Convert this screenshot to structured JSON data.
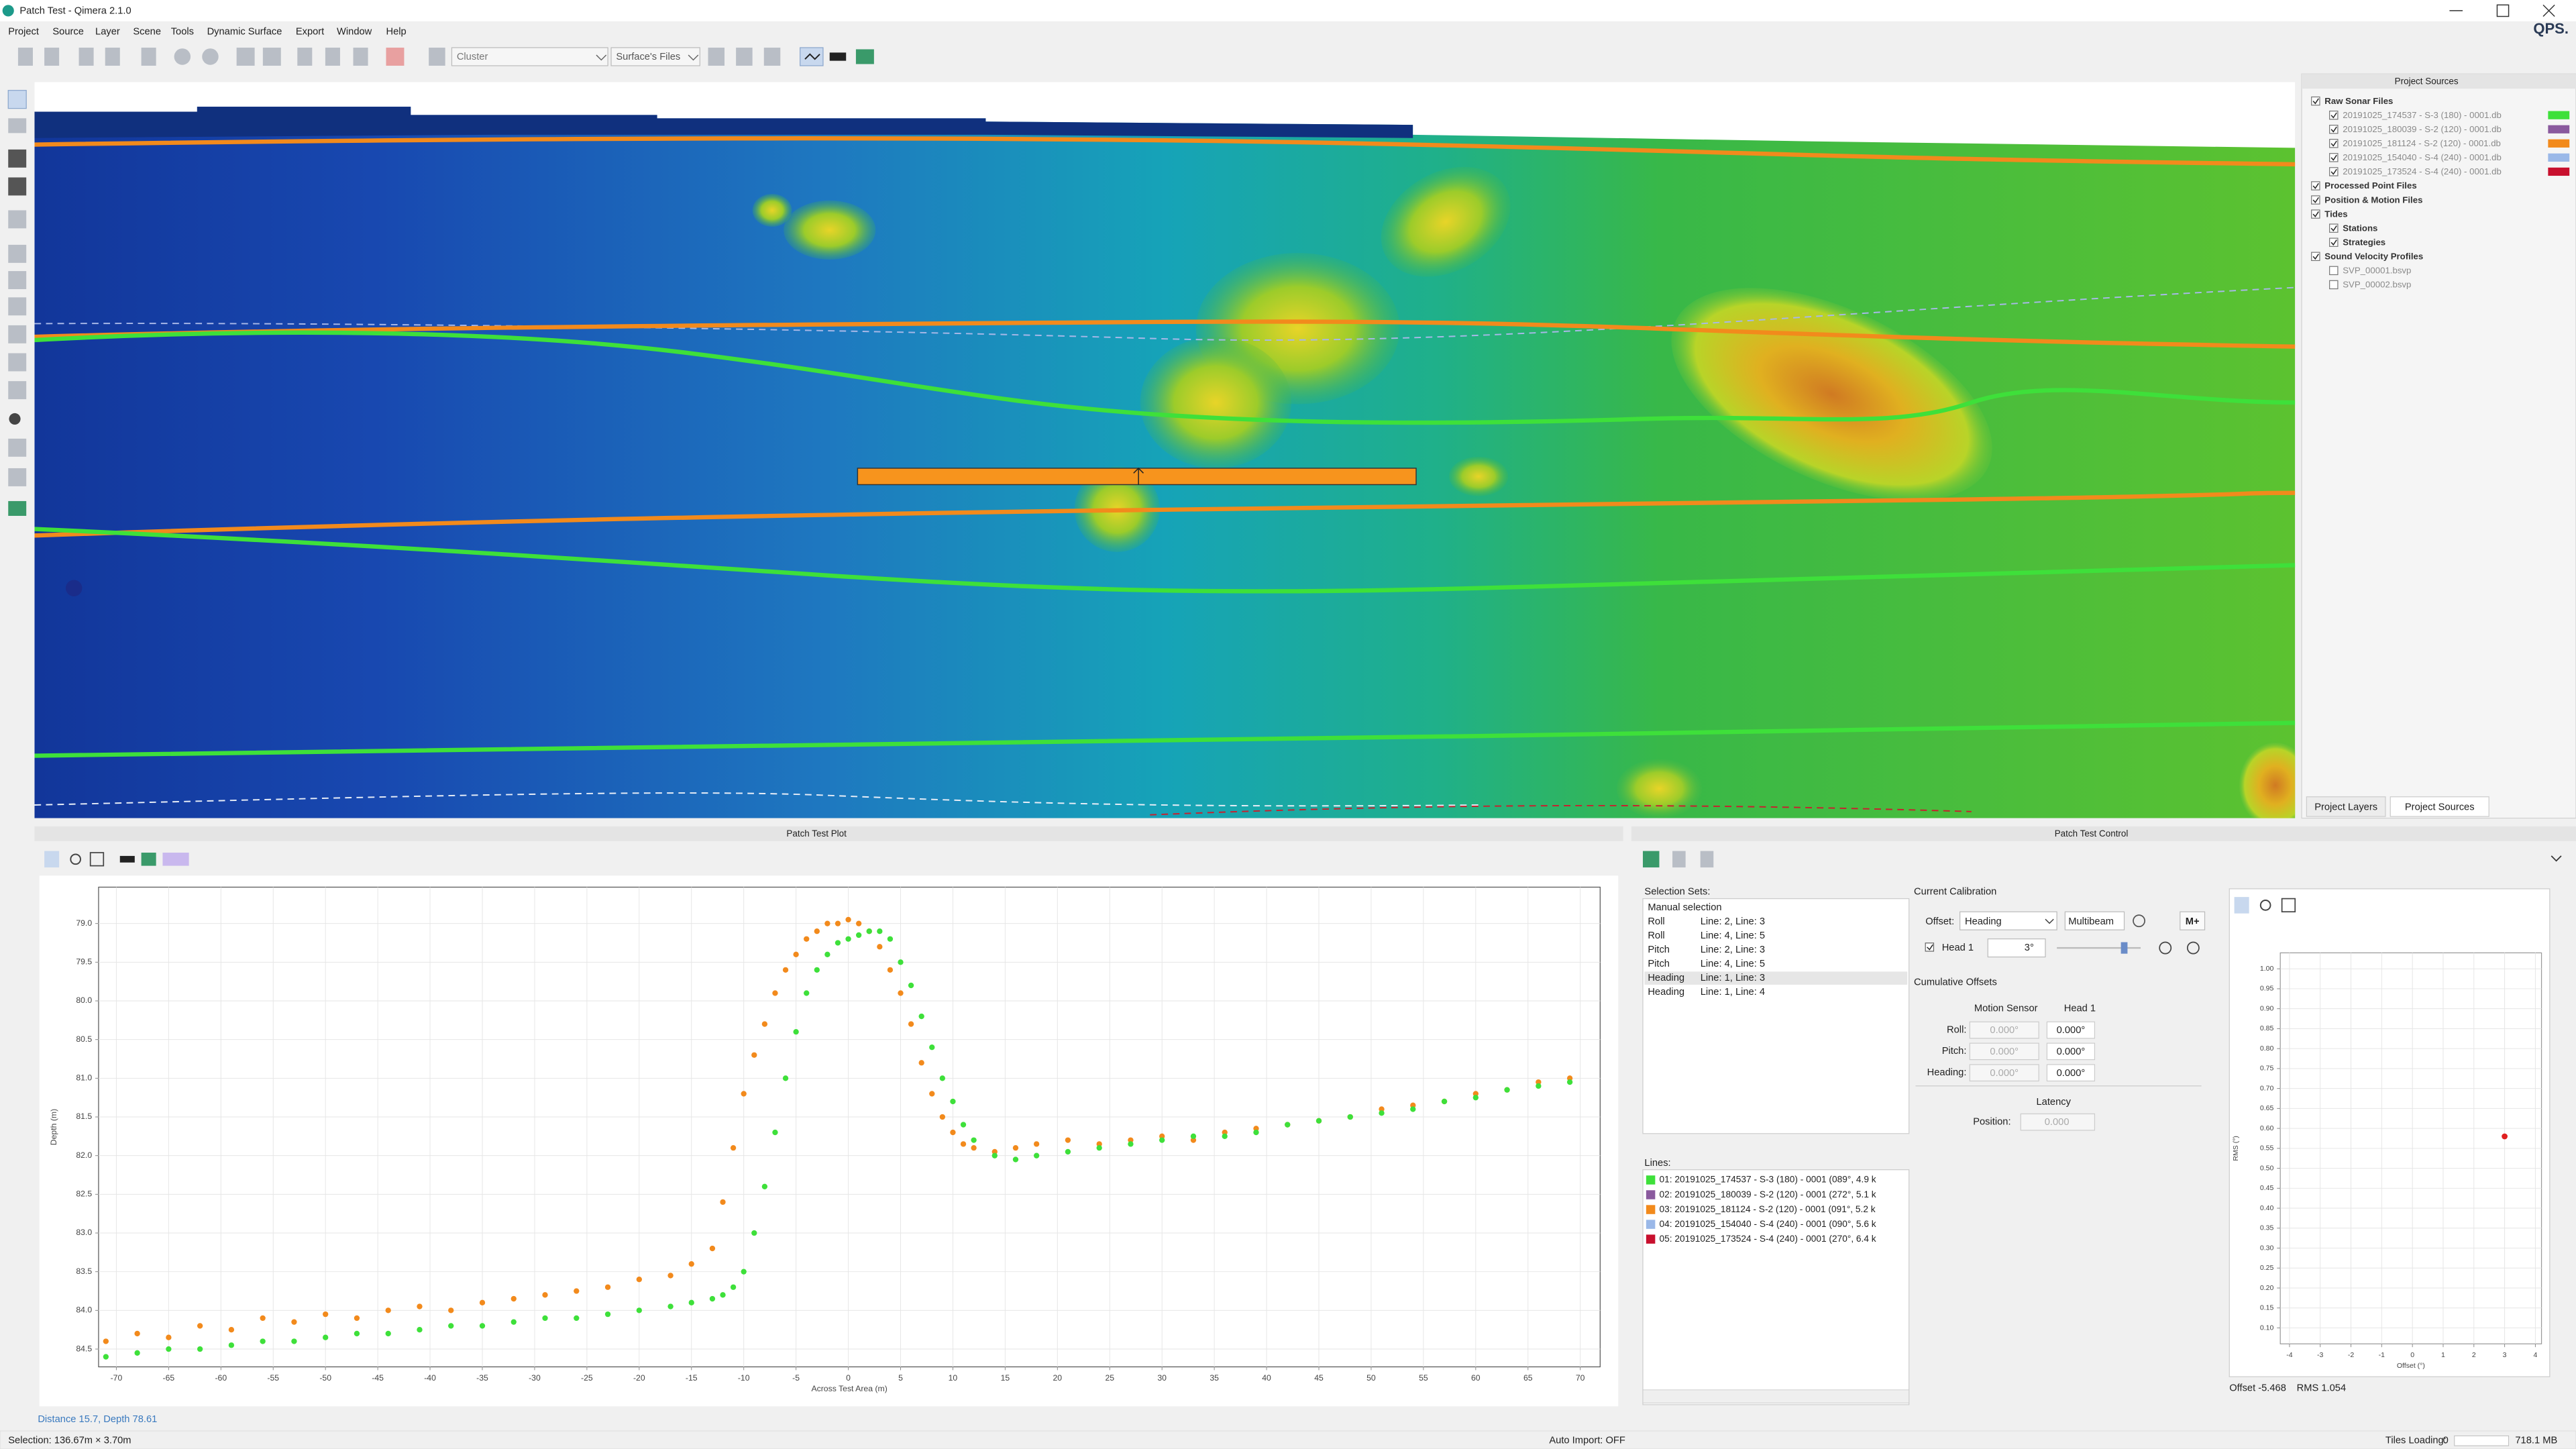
{
  "window": {
    "title": "Patch Test - Qimera 2.1.0",
    "logo": "QPS."
  },
  "menu": [
    "Project",
    "Source",
    "Layer",
    "Scene",
    "Tools",
    "Dynamic Surface",
    "Export",
    "Window",
    "Help"
  ],
  "toolbar": {
    "cluster": "Cluster",
    "surface_files": "Surface's Files"
  },
  "project_sources": {
    "title": "Project Sources",
    "items": [
      {
        "label": "Raw Sonar Files",
        "level": 0,
        "checked": true
      },
      {
        "label": "20191025_174537 - S-3 (180) - 0001.db",
        "level": 1,
        "checked": true,
        "color": "#3ee03a"
      },
      {
        "label": "20191025_180039 - S-2 (120) - 0001.db",
        "level": 1,
        "checked": true,
        "color": "#8a5a9e"
      },
      {
        "label": "20191025_181124 - S-2 (120) - 0001.db",
        "level": 1,
        "checked": true,
        "color": "#f28a1c"
      },
      {
        "label": "20191025_154040 - S-4 (240) - 0001.db",
        "level": 1,
        "checked": true,
        "color": "#9ab8e8"
      },
      {
        "label": "20191025_173524 - S-4 (240) - 0001.db",
        "level": 1,
        "checked": true,
        "color": "#c8102e"
      },
      {
        "label": "Processed Point Files",
        "level": 0,
        "checked": true
      },
      {
        "label": "Position & Motion Files",
        "level": 0,
        "checked": true
      },
      {
        "label": "Tides",
        "level": 0,
        "checked": true
      },
      {
        "label": "Stations",
        "level": 1,
        "checked": true
      },
      {
        "label": "Strategies",
        "level": 1,
        "checked": true
      },
      {
        "label": "Sound Velocity Profiles",
        "level": 0,
        "checked": true
      },
      {
        "label": "SVP_00001.bsvp",
        "level": 1,
        "checked": false
      },
      {
        "label": "SVP_00002.bsvp",
        "level": 1,
        "checked": false
      }
    ],
    "tabs": [
      "Project Layers",
      "Project Sources"
    ]
  },
  "plot_panel": {
    "title": "Patch Test Plot",
    "status": "Distance 15.7, Depth 78.61"
  },
  "control_panel": {
    "title": "Patch Test Control",
    "selection_sets": {
      "label": "Selection Sets:",
      "manual": "Manual selection",
      "rows": [
        {
          "type": "Roll",
          "lines": "Line: 2, Line: 3"
        },
        {
          "type": "Roll",
          "lines": "Line: 4, Line: 5"
        },
        {
          "type": "Pitch",
          "lines": "Line: 2, Line: 3"
        },
        {
          "type": "Pitch",
          "lines": "Line: 4, Line: 5"
        },
        {
          "type": "Heading",
          "lines": "Line: 1, Line: 3",
          "selected": true
        },
        {
          "type": "Heading",
          "lines": "Line: 1, Line: 4"
        }
      ]
    },
    "calibration": {
      "label": "Current Calibration",
      "offset_label": "Offset:",
      "offset": "Heading",
      "sensor": "Multibeam",
      "button": "M+",
      "head": "Head 1",
      "head_value": "3°",
      "cumulative": "Cumulative Offsets",
      "columns": [
        "Motion Sensor",
        "Head 1"
      ],
      "rows": [
        {
          "label": "Roll:",
          "values": [
            "0.000°",
            "0.000°"
          ]
        },
        {
          "label": "Pitch:",
          "values": [
            "0.000°",
            "0.000°"
          ]
        },
        {
          "label": "Heading:",
          "values": [
            "0.000°",
            "0.000°"
          ]
        }
      ],
      "latency": "Latency",
      "position_label": "Position:",
      "position": "0.000"
    },
    "lines": {
      "label": "Lines:",
      "items": [
        {
          "label": "01: 20191025_174537 - S-3 (180) - 0001 (089°, 4.9 k",
          "color": "#3ee03a"
        },
        {
          "label": "02: 20191025_180039 - S-2 (120) - 0001 (272°, 5.1 k",
          "color": "#8a5a9e"
        },
        {
          "label": "03: 20191025_181124 - S-2 (120) - 0001 (091°, 5.2 k",
          "color": "#f28a1c"
        },
        {
          "label": "04: 20191025_154040 - S-4 (240) - 0001 (090°, 5.6 k",
          "color": "#9ab8e8"
        },
        {
          "label": "05: 20191025_173524 - S-4 (240) - 0001 (270°, 6.4 k",
          "color": "#c8102e"
        }
      ]
    },
    "readout": {
      "offset": "Offset -5.468",
      "rms": "RMS 1.054"
    }
  },
  "status": {
    "selection": "Selection: 136.67m × 3.70m",
    "auto_import": "Auto Import: OFF",
    "tiles": "Tiles Loading:",
    "tiles_count": "0",
    "memory": "718.1 MB"
  },
  "chart_data": [
    {
      "type": "scatter",
      "x_label": "Across Test Area (m)",
      "y_label": "Depth (m)",
      "xlim": [
        -71.7,
        71.9
      ],
      "ylim": [
        84.73,
        78.53
      ],
      "xticks": [
        -70,
        -65,
        -60,
        -55,
        -50,
        -45,
        -40,
        -35,
        -30,
        -25,
        -20,
        -15,
        -10,
        -5,
        0,
        5,
        10,
        15,
        20,
        25,
        30,
        35,
        40,
        45,
        50,
        55,
        60,
        65,
        70
      ],
      "yticks": [
        {
          "value": 79,
          "label": "79.0"
        },
        79.5,
        {
          "value": 80,
          "label": "80.0"
        },
        80.5,
        {
          "value": 81,
          "label": "81.0"
        },
        81.5,
        {
          "value": 82,
          "label": "82.0"
        },
        82.5,
        {
          "value": 83,
          "label": "83.0"
        },
        83.5,
        {
          "value": 84,
          "label": "84.0"
        },
        84.5
      ],
      "grid": true,
      "series": [
        {
          "color": "#f28a1c",
          "x": [
            -71,
            -68,
            -65,
            -62,
            -59,
            -56,
            -53,
            -50,
            -47,
            -44,
            -41,
            -38,
            -35,
            -32,
            -29,
            -26,
            -23,
            -20,
            -17,
            -15,
            -13,
            -12,
            -11,
            -10,
            -9,
            -8,
            -7,
            -6,
            -5,
            -4,
            -3,
            -2,
            -1,
            0,
            1,
            2,
            3,
            4,
            5,
            6,
            7,
            8,
            9,
            10,
            11,
            12,
            14,
            16,
            18,
            21,
            24,
            27,
            30,
            33,
            36,
            39,
            42,
            45,
            48,
            51,
            54,
            57,
            60,
            63,
            66,
            69
          ],
          "values": [
            84.4,
            84.3,
            84.35,
            84.2,
            84.25,
            84.1,
            84.15,
            84.05,
            84.1,
            84.0,
            83.95,
            84.0,
            83.9,
            83.85,
            83.8,
            83.75,
            83.7,
            83.6,
            83.55,
            83.4,
            83.2,
            82.6,
            81.9,
            81.2,
            80.7,
            80.3,
            79.9,
            79.6,
            79.4,
            79.2,
            79.1,
            79.0,
            79.0,
            78.95,
            79.0,
            79.1,
            79.3,
            79.6,
            79.9,
            80.3,
            80.8,
            81.2,
            81.5,
            81.7,
            81.85,
            81.9,
            81.95,
            81.9,
            81.85,
            81.8,
            81.85,
            81.8,
            81.75,
            81.8,
            81.7,
            81.65,
            81.6,
            81.55,
            81.5,
            81.4,
            81.35,
            81.3,
            81.2,
            81.15,
            81.05,
            81.0
          ]
        },
        {
          "color": "#3ee03a",
          "x": [
            -71,
            -68,
            -65,
            -62,
            -59,
            -56,
            -53,
            -50,
            -47,
            -44,
            -41,
            -38,
            -35,
            -32,
            -29,
            -26,
            -23,
            -20,
            -17,
            -15,
            -13,
            -12,
            -11,
            -10,
            -9,
            -8,
            -7,
            -6,
            -5,
            -4,
            -3,
            -2,
            -1,
            0,
            1,
            2,
            3,
            4,
            5,
            6,
            7,
            8,
            9,
            10,
            11,
            12,
            14,
            16,
            18,
            21,
            24,
            27,
            30,
            33,
            36,
            39,
            42,
            45,
            48,
            51,
            54,
            57,
            60,
            63,
            66,
            69
          ],
          "values": [
            84.6,
            84.55,
            84.5,
            84.5,
            84.45,
            84.4,
            84.4,
            84.35,
            84.3,
            84.3,
            84.25,
            84.2,
            84.2,
            84.15,
            84.1,
            84.1,
            84.05,
            84.0,
            83.95,
            83.9,
            83.85,
            83.8,
            83.7,
            83.5,
            83.0,
            82.4,
            81.7,
            81.0,
            80.4,
            79.9,
            79.6,
            79.4,
            79.25,
            79.2,
            79.15,
            79.1,
            79.1,
            79.2,
            79.5,
            79.8,
            80.2,
            80.6,
            81.0,
            81.3,
            81.6,
            81.8,
            82.0,
            82.05,
            82.0,
            81.95,
            81.9,
            81.85,
            81.8,
            81.75,
            81.75,
            81.7,
            81.6,
            81.55,
            81.5,
            81.45,
            81.4,
            81.3,
            81.25,
            81.15,
            81.1,
            81.05
          ]
        }
      ]
    },
    {
      "type": "scatter",
      "x_label": "Offset (°)",
      "y_label": "RMS (°)",
      "xlim": [
        -4.3,
        4.2
      ],
      "ylim": [
        0.06,
        1.04
      ],
      "xticks": [
        -4,
        -3,
        -2,
        -1,
        0,
        1,
        2,
        3,
        4
      ],
      "yticks": [
        {
          "value": 0.1,
          "label": "0.10"
        },
        0.15,
        {
          "value": 0.2,
          "label": "0.20"
        },
        0.25,
        {
          "value": 0.3,
          "label": "0.30"
        },
        0.35,
        {
          "value": 0.4,
          "label": "0.40"
        },
        0.45,
        {
          "value": 0.5,
          "label": "0.50"
        },
        0.55,
        {
          "value": 0.6,
          "label": "0.60"
        },
        0.65,
        {
          "value": 0.7,
          "label": "0.70"
        },
        0.75,
        {
          "value": 0.8,
          "label": "0.80"
        },
        0.85,
        {
          "value": 0.9,
          "label": "0.90"
        },
        0.95,
        {
          "value": 1,
          "label": "1.00"
        }
      ],
      "grid": true,
      "series": [
        {
          "color": "#e02020",
          "x": [
            3
          ],
          "values": [
            0.58
          ]
        }
      ]
    }
  ]
}
